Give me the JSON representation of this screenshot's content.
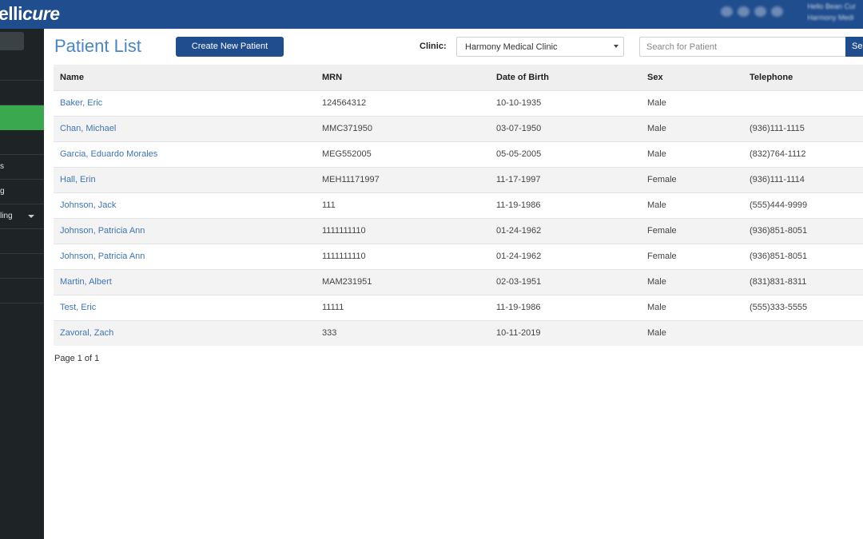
{
  "app": {
    "logo_a": "elli",
    "logo_b": "cure"
  },
  "header": {
    "icons": [
      "megaphone-icon",
      "help-icon",
      "mail-icon",
      "chat-icon"
    ],
    "user_line1": "Hello Bean Cur",
    "user_line2": "Harmony Medi"
  },
  "sidebar": {
    "items": [
      {
        "label": ""
      },
      {
        "label": ""
      },
      {
        "label": "",
        "active": true
      },
      {
        "label": ""
      },
      {
        "label": "s"
      },
      {
        "label": "g"
      },
      {
        "label": "ling",
        "has_caret": true
      },
      {
        "label": ""
      },
      {
        "label": ""
      },
      {
        "label": ""
      }
    ]
  },
  "page": {
    "title": "Patient List",
    "create_button": "Create New Patient",
    "clinic_label": "Clinic:",
    "clinic_value": "Harmony Medical Clinic",
    "search_placeholder": "Search for Patient",
    "search_button": "Sea",
    "pager": "Page 1 of 1"
  },
  "table": {
    "headers": [
      "Name",
      "MRN",
      "Date of Birth",
      "Sex",
      "Telephone"
    ],
    "rows": [
      [
        "Baker, Eric",
        "124564312",
        "10-10-1935",
        "Male",
        ""
      ],
      [
        "Chan, Michael",
        "MMC371950",
        "03-07-1950",
        "Male",
        "(936)111-1115"
      ],
      [
        "Garcia, Eduardo Morales",
        "MEG552005",
        "05-05-2005",
        "Male",
        "(832)764-1112"
      ],
      [
        "Hall, Erin",
        "MEH11171997",
        "11-17-1997",
        "Female",
        "(936)111-1114"
      ],
      [
        "Johnson, Jack",
        "111",
        "11-19-1986",
        "Male",
        "(555)444-9999"
      ],
      [
        "Johnson, Patricia Ann",
        "1111111110",
        "01-24-1962",
        "Female",
        "(936)851-8051"
      ],
      [
        "Johnson, Patricia Ann",
        "1111111110",
        "01-24-1962",
        "Female",
        "(936)851-8051"
      ],
      [
        "Martin, Albert",
        "MAM231951",
        "02-03-1951",
        "Male",
        "(831)831-8311"
      ],
      [
        "Test, Eric",
        "11111",
        "11-19-1986",
        "Male",
        "(555)333-5555"
      ],
      [
        "Zavoral, Zach",
        "333",
        "10-11-2019",
        "Male",
        ""
      ]
    ]
  },
  "colors": {
    "brand": "#1f4d8e",
    "sidebar": "#1e2326",
    "active": "#3aa84e",
    "link": "#3f74b4",
    "title": "#4a86c5"
  }
}
